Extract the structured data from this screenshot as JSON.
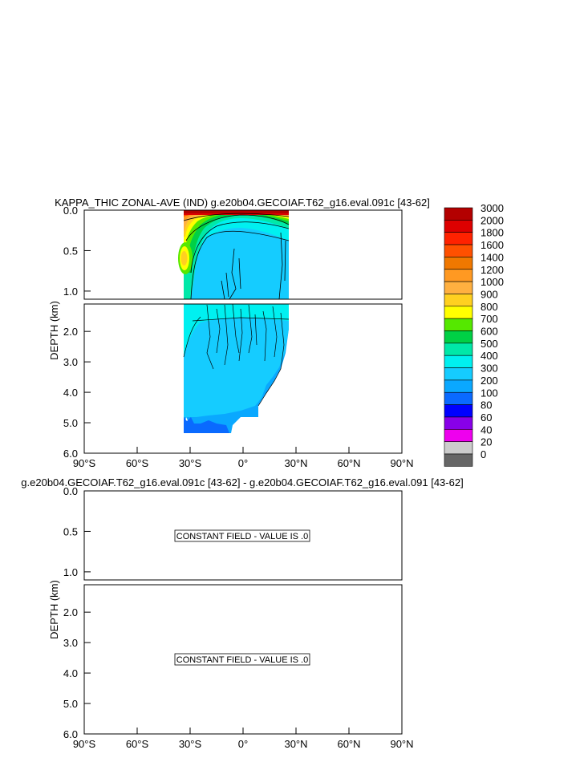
{
  "chart_data": [
    {
      "type": "contour",
      "title": "KAPPA_THIC ZONAL-AVE (IND) g.e20b04.GECOIAF.T62_g16.eval.091c [43-62]",
      "ylabel": "DEPTH (km)",
      "x_ticks": [
        "90°S",
        "60°S",
        "30°S",
        "0°",
        "30°N",
        "60°N",
        "90°N"
      ],
      "x_tick_values": [
        -90,
        -60,
        -30,
        0,
        30,
        60,
        90
      ],
      "xlim": [
        -90,
        90
      ],
      "upper_y_ticks": [
        "0.0",
        "0.5",
        "1.0"
      ],
      "upper_y_tick_values": [
        0,
        0.5,
        1.0
      ],
      "upper_ylim": [
        0,
        1.1
      ],
      "lower_y_ticks": [
        "2.0",
        "3.0",
        "4.0",
        "5.0",
        "6.0"
      ],
      "lower_y_tick_values": [
        2,
        3,
        4,
        5,
        6
      ],
      "lower_ylim": [
        1.1,
        6.0
      ],
      "data_extent_lat": [
        -34,
        26
      ],
      "legend": {
        "placement": "right",
        "levels": [
          "3000",
          "2000",
          "1800",
          "1600",
          "1400",
          "1200",
          "1000",
          "900",
          "800",
          "700",
          "600",
          "500",
          "400",
          "300",
          "200",
          "100",
          "80",
          "60",
          "40",
          "20",
          "0"
        ],
        "colors": [
          "#b30000",
          "#dd0000",
          "#ff2200",
          "#ff5000",
          "#f07800",
          "#ff9922",
          "#ffb040",
          "#ffd020",
          "#ffff00",
          "#55e800",
          "#00d045",
          "#00e8a8",
          "#00f0f0",
          "#15ccff",
          "#0aa8ff",
          "#0a6aff",
          "#0000ff",
          "#8800e8",
          "#ee00ee",
          "#cccccc",
          "#666666"
        ]
      }
    },
    {
      "type": "contour",
      "title": "g.e20b04.GECOIAF.T62_g16.eval.091c [43-62] - g.e20b04.GECOIAF.T62_g16.eval.091 [43-62]",
      "ylabel": "DEPTH (km)",
      "x_ticks": [
        "90°S",
        "60°S",
        "30°S",
        "0°",
        "30°N",
        "60°N",
        "90°N"
      ],
      "upper_y_ticks": [
        "0.0",
        "0.5",
        "1.0"
      ],
      "lower_y_ticks": [
        "2.0",
        "3.0",
        "4.0",
        "5.0",
        "6.0"
      ],
      "annotation_upper": "CONSTANT FIELD - VALUE IS .0",
      "annotation_lower": "CONSTANT FIELD - VALUE IS .0"
    }
  ]
}
